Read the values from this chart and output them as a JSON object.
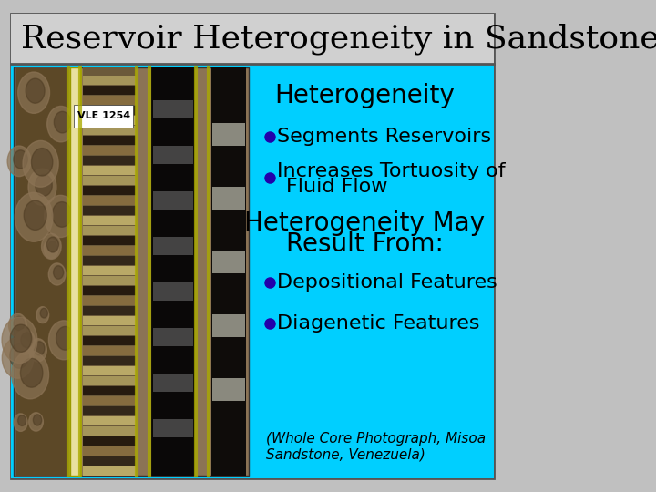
{
  "title": "Reservoir Heterogeneity in Sandstone",
  "title_fontsize": 26,
  "title_color": "#000000",
  "title_bg": "#c8c8c8",
  "slide_bg": "#c0c0c0",
  "content_bg": "#00cfff",
  "border_color": "#555555",
  "heading1": "Heterogeneity",
  "heading1_fontsize": 20,
  "bullet_color": "#2200aa",
  "bullet1": "Segments Reservoirs",
  "bullet2": "Increases Tortuosity of\n  Fluid Flow",
  "bullet_fontsize": 16,
  "heading2": "Heterogeneity May\n  Result From:",
  "heading2_fontsize": 20,
  "bullet3": "Depositional Features",
  "bullet4": "Diagenetic Features",
  "caption": "(Whole Core Photograph, Misoa\nSandstone, Venezuela)",
  "caption_fontsize": 11,
  "text_color": "#000000"
}
